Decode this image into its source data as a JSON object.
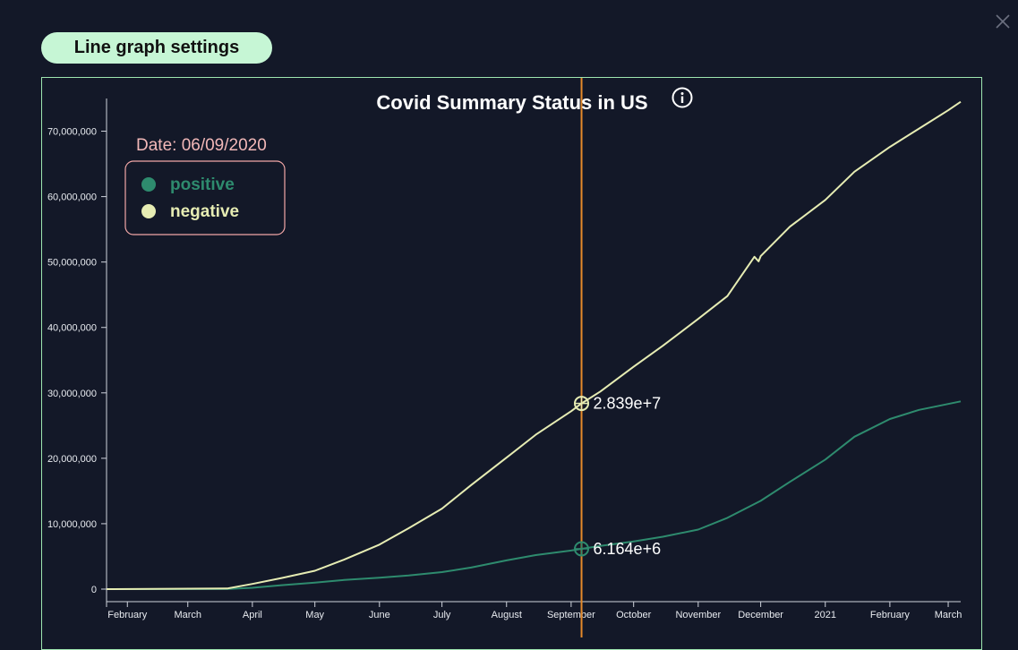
{
  "header": {
    "settings_label": "Line graph settings"
  },
  "icons": {
    "close": "close-icon",
    "info": "info-icon"
  },
  "colors": {
    "background": "#131828",
    "positive": "#2e8b6e",
    "negative": "#e6ecb3",
    "cursor": "#e58a2a",
    "date_text": "#f2b8b8",
    "legend_border": "#f2a6a6",
    "settings_button": "#c6f6d5"
  },
  "chart_data": {
    "type": "line",
    "title": "Covid Summary Status in US",
    "xlabel": "",
    "ylabel": "",
    "x_ticks": [
      "February",
      "March",
      "April",
      "May",
      "June",
      "July",
      "August",
      "September",
      "October",
      "November",
      "December",
      "2021",
      "February",
      "March"
    ],
    "ylim": [
      0,
      75000000
    ],
    "y_ticks": [
      "0",
      "10,000,000",
      "20,000,000",
      "30,000,000",
      "40,000,000",
      "50,000,000",
      "60,000,000",
      "70,000,000"
    ],
    "legend": {
      "date_label": "Date: 06/09/2020",
      "position": "top-left",
      "entries": [
        "positive",
        "negative"
      ]
    },
    "cursor": {
      "date": "2020-09-06",
      "labels": {
        "negative": "2.839e+7",
        "positive": "6.164e+6"
      },
      "values": {
        "negative": 28390000,
        "positive": 6164000
      }
    },
    "series": [
      {
        "name": "positive",
        "x": [
          "2020-01-22",
          "2020-03-20",
          "2020-04-01",
          "2020-04-15",
          "2020-05-01",
          "2020-05-15",
          "2020-06-01",
          "2020-06-15",
          "2020-07-01",
          "2020-07-15",
          "2020-08-01",
          "2020-08-15",
          "2020-09-01",
          "2020-09-06",
          "2020-09-15",
          "2020-10-01",
          "2020-10-15",
          "2020-11-01",
          "2020-11-15",
          "2020-12-01",
          "2020-12-15",
          "2021-01-01",
          "2021-01-15",
          "2021-02-01",
          "2021-02-15",
          "2021-03-01",
          "2021-03-07"
        ],
        "values": [
          0,
          10000,
          200000,
          600000,
          1000000,
          1400000,
          1750000,
          2100000,
          2600000,
          3300000,
          4400000,
          5200000,
          5900000,
          6164000,
          6600000,
          7300000,
          8000000,
          9100000,
          10900000,
          13500000,
          16400000,
          19800000,
          23300000,
          26000000,
          27400000,
          28300000,
          28700000
        ]
      },
      {
        "name": "negative",
        "x": [
          "2020-01-22",
          "2020-03-20",
          "2020-04-01",
          "2020-04-15",
          "2020-05-01",
          "2020-05-15",
          "2020-06-01",
          "2020-06-15",
          "2020-07-01",
          "2020-07-15",
          "2020-08-01",
          "2020-08-15",
          "2020-09-01",
          "2020-09-06",
          "2020-09-15",
          "2020-10-01",
          "2020-10-15",
          "2020-11-01",
          "2020-11-15",
          "2020-11-28",
          "2020-11-30",
          "2020-12-01",
          "2020-12-15",
          "2021-01-01",
          "2021-01-15",
          "2021-02-01",
          "2021-02-15",
          "2021-03-01",
          "2021-03-07"
        ],
        "values": [
          0,
          100000,
          800000,
          1700000,
          2800000,
          4500000,
          6800000,
          9300000,
          12300000,
          15900000,
          20100000,
          23600000,
          27200000,
          28390000,
          30200000,
          34000000,
          37200000,
          41300000,
          44800000,
          50800000,
          50100000,
          50900000,
          55400000,
          59500000,
          63800000,
          67600000,
          70400000,
          73200000,
          74500000
        ]
      }
    ]
  }
}
